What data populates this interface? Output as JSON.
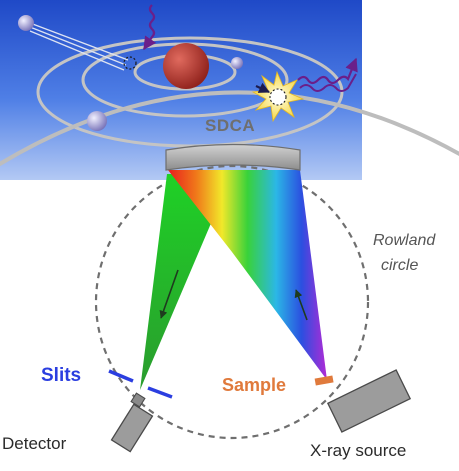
{
  "labels": {
    "analyzer": "SDCA",
    "rowland_line1": "Rowland",
    "rowland_line2": "circle",
    "slits": "Slits",
    "sample": "Sample",
    "detector": "Detector",
    "xray_source": "X-ray source"
  },
  "colors": {
    "atom_sky": "#2f62d8",
    "nucleus": "#b5342c",
    "electron": "#9a97cf",
    "orbit": "#b0b0b0",
    "photon": "#6a1f8a",
    "slits": "#2b3ee0",
    "sample": "#e07a3c",
    "crystal": "#a7a7a7",
    "green_beam": "#27c42c",
    "device": "#9c9c9c"
  }
}
